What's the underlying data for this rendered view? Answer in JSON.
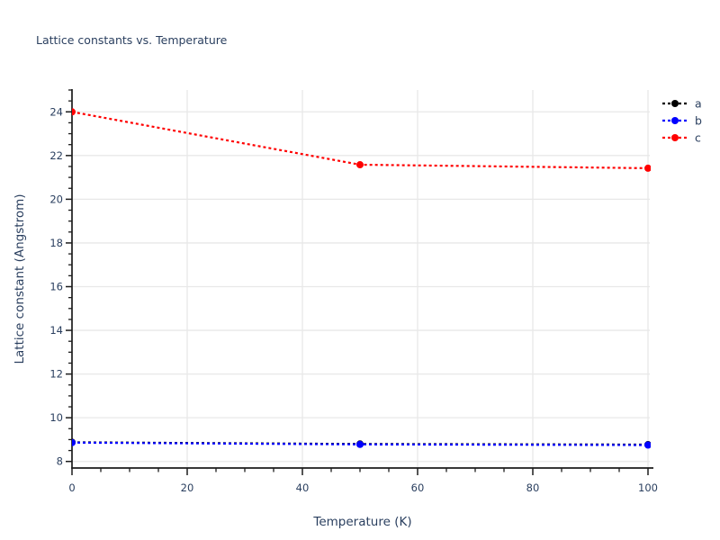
{
  "page": {
    "background": "#ffffff"
  },
  "chart_data": {
    "type": "line",
    "title": "Lattice constants vs. Temperature",
    "xlabel": "Temperature (K)",
    "ylabel": "Lattice constant (Angstrom)",
    "xlim": [
      0,
      100
    ],
    "ylim": [
      7.7,
      25.0
    ],
    "x_ticks": [
      0,
      20,
      40,
      60,
      80,
      100
    ],
    "x_minor_step": 5,
    "y_ticks": [
      8,
      10,
      12,
      14,
      16,
      18,
      20,
      22,
      24
    ],
    "y_minor_step": 0.5,
    "grid": true,
    "line_style": "dotted",
    "marker": "circle",
    "legend_position": "top-right-outside",
    "x": [
      0,
      50,
      100
    ],
    "series": [
      {
        "name": "a",
        "color": "#000000",
        "values": [
          8.88,
          8.8,
          8.77
        ]
      },
      {
        "name": "b",
        "color": "#0000ff",
        "values": [
          8.86,
          8.78,
          8.75
        ]
      },
      {
        "name": "c",
        "color": "#ff0000",
        "values": [
          24.0,
          21.58,
          21.42
        ]
      }
    ]
  },
  "style": {
    "text_color": "#2a3f5f",
    "axis_color": "#1c1c1c",
    "grid_color": "#e8e8e8",
    "background": "#ffffff"
  }
}
